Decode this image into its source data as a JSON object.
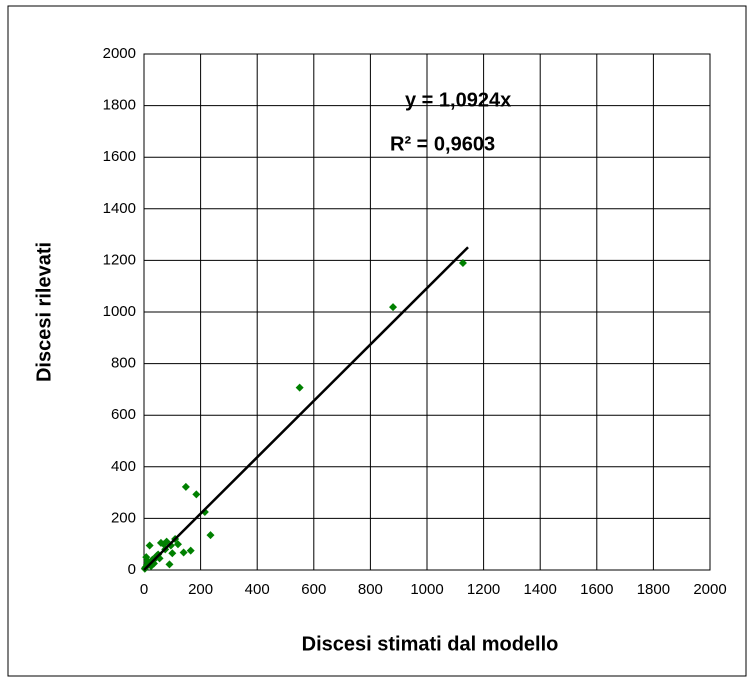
{
  "chart_data": {
    "type": "scatter",
    "xlabel": "Discesi stimati dal modello",
    "ylabel": "Discesi rilevati",
    "annotations": [
      "y = 1,0924x",
      "R² = 0,9603"
    ],
    "xlim": [
      0,
      2000
    ],
    "ylim": [
      0,
      2000
    ],
    "xticks": [
      0,
      200,
      400,
      600,
      800,
      1000,
      1200,
      1400,
      1600,
      1800,
      2000
    ],
    "yticks": [
      0,
      200,
      400,
      600,
      800,
      1000,
      1200,
      1400,
      1600,
      1800,
      2000
    ],
    "grid": true,
    "color": "#008000",
    "x": [
      1127,
      880,
      550,
      148,
      185,
      215,
      235,
      165,
      140,
      110,
      100,
      90,
      80,
      70,
      60,
      50,
      40,
      30,
      20,
      15,
      10,
      5,
      8,
      25,
      35,
      45,
      55,
      75,
      120,
      95,
      3,
      12
    ],
    "values": [
      1190,
      1019,
      707,
      322,
      293,
      225,
      135,
      75,
      68,
      120,
      65,
      22,
      110,
      100,
      105,
      60,
      45,
      40,
      95,
      30,
      20,
      10,
      50,
      15,
      25,
      55,
      45,
      80,
      100,
      95,
      5,
      35
    ],
    "trendline": {
      "color": "#000000",
      "x": [
        0,
        1145
      ],
      "values": [
        0,
        1251
      ]
    }
  }
}
